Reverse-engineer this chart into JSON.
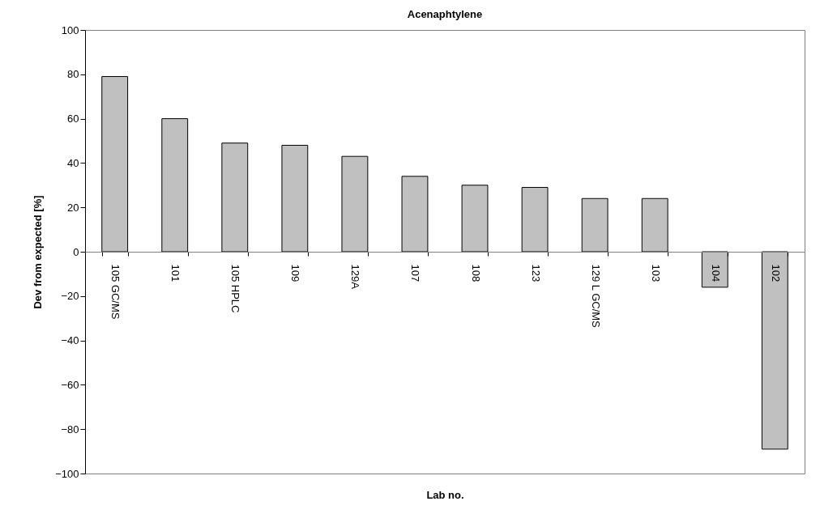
{
  "chart_data": {
    "type": "bar",
    "title": "Acenaphtylene",
    "xlabel": "Lab no.",
    "ylabel": "Dev from expected [%]",
    "categories": [
      "105 GC/MS",
      "101",
      "105 HPLC",
      "109",
      "129A",
      "107",
      "108",
      "123",
      "129 L GC/MS",
      "103",
      "104",
      "102"
    ],
    "values": [
      79,
      60,
      49,
      48,
      43,
      34,
      30,
      29,
      24,
      24,
      -16,
      -89
    ],
    "color": "#c0c0c0",
    "ylim": [
      -100,
      100
    ],
    "yticks": [
      -100,
      -80,
      -60,
      -40,
      -20,
      0,
      20,
      40,
      60,
      80,
      100
    ],
    "grid": false
  }
}
